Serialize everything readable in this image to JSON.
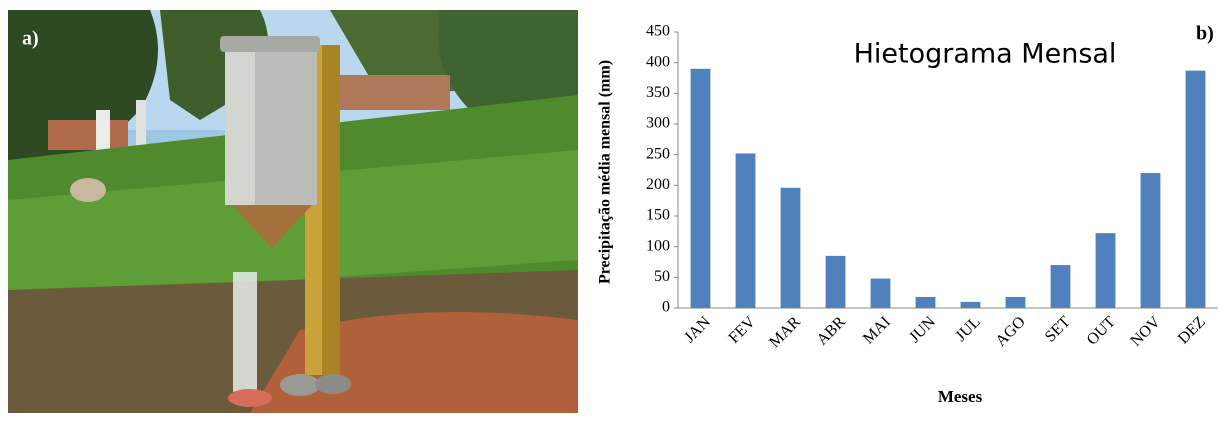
{
  "panel_labels": [
    "a)",
    "b)"
  ],
  "chart_data": {
    "type": "bar",
    "title": "Hietograma Mensal",
    "x_label": "Meses",
    "y_label": "Precipitação média mensal (mm)",
    "categories": [
      "JAN",
      "FEV",
      "MAR",
      "ABR",
      "MAI",
      "JUN",
      "JUL",
      "AGO",
      "SET",
      "OUT",
      "NOV",
      "DEZ"
    ],
    "values": [
      390,
      252,
      196,
      85,
      48,
      18,
      10,
      18,
      70,
      122,
      220,
      387
    ],
    "color": "#4f81bd",
    "ylim": [
      0,
      450
    ],
    "yticks": [
      0,
      50,
      100,
      150,
      200,
      250,
      300,
      350,
      400,
      450
    ],
    "grid": false
  }
}
